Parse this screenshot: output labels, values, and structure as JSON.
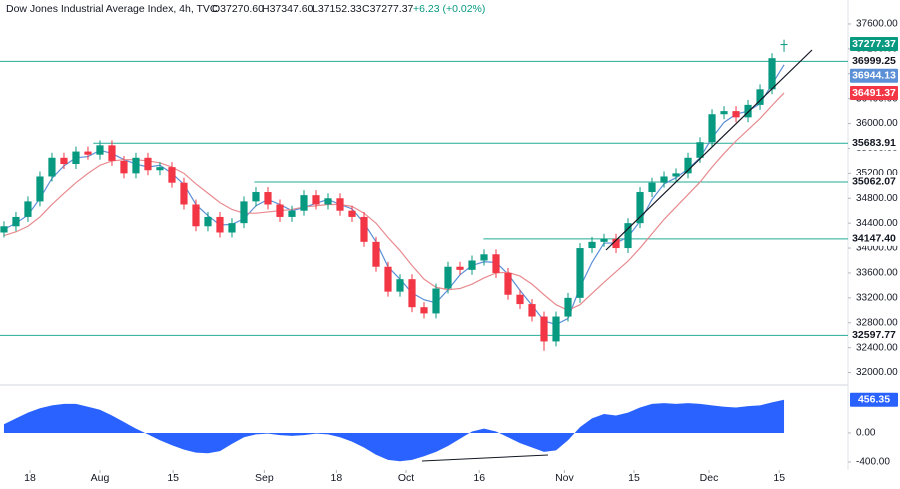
{
  "header": {
    "title": "Dow Jones Industrial Average Index, 4h, TVC",
    "open": "O37270.60",
    "high": "H37347.60",
    "low": "L37152.33",
    "close": "C37277.37",
    "change": "+6.23 (+0.02%)"
  },
  "chart_data": [
    {
      "type": "candlestick",
      "open": [
        34250,
        34350,
        34500,
        34750,
        35150,
        35450,
        35350,
        35550,
        35500,
        35650,
        35400,
        35200,
        35450,
        35250,
        35300,
        35050,
        34700,
        34350,
        34500,
        34250,
        34400,
        34750,
        34900,
        34700,
        34500,
        34600,
        34850,
        34700,
        34800,
        34600,
        34500,
        34100,
        33700,
        33300,
        33500,
        33050,
        32950,
        33350,
        33700,
        33650,
        33800,
        33900,
        33600,
        33250,
        33100,
        32900,
        32500,
        32900,
        33200,
        34000,
        34100,
        34150,
        34000,
        34400,
        34900,
        35050,
        35150,
        35200,
        35450,
        35700,
        36150,
        36200,
        36100,
        36300,
        36550,
        37270.6
      ],
      "high": [
        34430,
        34580,
        34830,
        35230,
        35530,
        35530,
        35630,
        35630,
        35730,
        35730,
        35480,
        35530,
        35530,
        35380,
        35380,
        35130,
        34780,
        34580,
        34580,
        34480,
        34830,
        34980,
        34980,
        34780,
        34680,
        34930,
        34930,
        34880,
        34880,
        34680,
        34580,
        34180,
        33780,
        33580,
        33580,
        33130,
        33430,
        33780,
        33780,
        33880,
        33980,
        33980,
        33680,
        33330,
        33180,
        32980,
        32980,
        33280,
        34080,
        34180,
        34230,
        34230,
        34480,
        34980,
        35130,
        35230,
        35280,
        35530,
        35780,
        36230,
        36280,
        36280,
        36380,
        36630,
        37130,
        37347.6
      ],
      "low": [
        34170,
        34270,
        34420,
        34670,
        35070,
        35270,
        35270,
        35420,
        35420,
        35320,
        35120,
        35120,
        35170,
        35170,
        34970,
        34620,
        34270,
        34270,
        34170,
        34170,
        34320,
        34670,
        34620,
        34420,
        34420,
        34520,
        34620,
        34620,
        34520,
        34420,
        34020,
        33620,
        33220,
        33220,
        32970,
        32870,
        32870,
        33270,
        33570,
        33570,
        33720,
        33520,
        33170,
        33020,
        32820,
        32350,
        32420,
        32820,
        33120,
        33920,
        34020,
        33920,
        33920,
        34320,
        34820,
        34970,
        35070,
        35120,
        35370,
        35620,
        36070,
        36020,
        36020,
        36220,
        36470,
        37152.33
      ],
      "close": [
        34350,
        34500,
        34750,
        35150,
        35450,
        35350,
        35550,
        35500,
        35650,
        35400,
        35200,
        35450,
        35250,
        35300,
        35050,
        34700,
        34350,
        34500,
        34250,
        34400,
        34750,
        34900,
        34700,
        34500,
        34600,
        34850,
        34700,
        34800,
        34600,
        34500,
        34100,
        33700,
        33300,
        33500,
        33050,
        32950,
        33350,
        33700,
        33650,
        33800,
        33900,
        33600,
        33250,
        33100,
        32900,
        32500,
        32900,
        33200,
        34000,
        34100,
        34150,
        34000,
        34400,
        34900,
        35050,
        35150,
        35200,
        35450,
        35700,
        36150,
        36200,
        36100,
        36300,
        36550,
        37050,
        37277.37
      ],
      "up_color": "#089981",
      "down_color": "#f23645",
      "series": [
        {
          "color": "#5b8fd6",
          "values": [
            34300,
            34400,
            34530,
            34800,
            35120,
            35320,
            35450,
            35470,
            35570,
            35520,
            35420,
            35350,
            35300,
            35330,
            35200,
            35020,
            34700,
            34520,
            34370,
            34380,
            34470,
            34680,
            34780,
            34700,
            34600,
            34650,
            34720,
            34780,
            34700,
            34630,
            34400,
            34100,
            33700,
            33500,
            33280,
            33170,
            33120,
            33330,
            33570,
            33720,
            33780,
            33770,
            33580,
            33320,
            33080,
            32830,
            32770,
            32870,
            33370,
            33770,
            34080,
            34080,
            34180,
            34430,
            34780,
            35030,
            35130,
            35270,
            35450,
            35770,
            36020,
            36150,
            36200,
            36320,
            36630,
            36944.13
          ]
        },
        {
          "color": "#e88a8f",
          "values": [
            34200,
            34260,
            34350,
            34500,
            34700,
            34880,
            35050,
            35200,
            35330,
            35400,
            35420,
            35420,
            35400,
            35370,
            35300,
            35200,
            35030,
            34880,
            34730,
            34620,
            34560,
            34560,
            34580,
            34600,
            34620,
            34660,
            34680,
            34700,
            34700,
            34670,
            34560,
            34400,
            34170,
            33960,
            33720,
            33500,
            33370,
            33330,
            33350,
            33420,
            33520,
            33600,
            33610,
            33550,
            33420,
            33250,
            33090,
            33000,
            33090,
            33270,
            33450,
            33620,
            33790,
            34000,
            34230,
            34460,
            34660,
            34860,
            35060,
            35300,
            35520,
            35720,
            35900,
            36080,
            36290,
            36491.37
          ]
        }
      ],
      "levels": [
        {
          "value": 36999.25,
          "label": "36999.25"
        },
        {
          "value": 35683.91,
          "label": "35683.91"
        },
        {
          "value": 35062.07,
          "label": "35062.07"
        },
        {
          "value": 34147.4,
          "label": "34147.40"
        },
        {
          "value": 32597.77,
          "label": "32597.77"
        }
      ],
      "price_labels": [
        {
          "value": 37277.37,
          "label": "37277.37",
          "color": "#089981"
        },
        {
          "value": 36944.13,
          "label": "36944.13",
          "color": "#5b8fd6"
        },
        {
          "value": 36491.37,
          "label": "36491.37",
          "color": "#f23645"
        }
      ],
      "xlim": [
        -0.33,
        70.33
      ],
      "ylim": [
        31800,
        37985
      ],
      "yticks": [
        {
          "value": 32000,
          "label": "32000.00"
        },
        {
          "value": 32400,
          "label": "32400.00"
        },
        {
          "value": 32800,
          "label": "32800.00"
        },
        {
          "value": 33200,
          "label": "33200.00"
        },
        {
          "value": 33600,
          "label": "33600.00"
        },
        {
          "value": 34000,
          "label": "34000.00"
        },
        {
          "value": 34400,
          "label": "34400.00"
        },
        {
          "value": 34800,
          "label": "34800.00"
        },
        {
          "value": 35200,
          "label": "35200.00"
        },
        {
          "value": 35600,
          "label": "35600.00"
        },
        {
          "value": 36000,
          "label": "36000.00"
        },
        {
          "value": 36400,
          "label": "36400.00"
        },
        {
          "value": 36800,
          "label": "36800.00"
        },
        {
          "value": 37200,
          "label": "37200.00"
        },
        {
          "value": 37600,
          "label": "37600.00"
        }
      ],
      "xticks": [
        {
          "value": 2.17,
          "label": "18"
        },
        {
          "value": 8,
          "label": "Aug"
        },
        {
          "value": 14.1,
          "label": "15"
        },
        {
          "value": 21.7,
          "label": "Sep"
        },
        {
          "value": 27.7,
          "label": "18"
        },
        {
          "value": 33.5,
          "label": "Oct"
        },
        {
          "value": 39.6,
          "label": "16"
        },
        {
          "value": 46.7,
          "label": "Nov"
        },
        {
          "value": 52.5,
          "label": "15"
        },
        {
          "value": 58.75,
          "label": "Dec"
        },
        {
          "value": 64.6,
          "label": "15"
        }
      ]
    },
    {
      "type": "area",
      "color": "#2962ff",
      "values": [
        120,
        200,
        280,
        340,
        380,
        400,
        400,
        360,
        320,
        240,
        150,
        60,
        -20,
        -100,
        -170,
        -230,
        -270,
        -280,
        -250,
        -150,
        -60,
        -20,
        -10,
        -30,
        -40,
        -30,
        -10,
        -20,
        -60,
        -120,
        -200,
        -300,
        -370,
        -390,
        -370,
        -320,
        -260,
        -180,
        -80,
        20,
        60,
        20,
        -60,
        -140,
        -200,
        -260,
        -240,
        -100,
        80,
        200,
        260,
        240,
        280,
        350,
        400,
        410,
        400,
        410,
        400,
        380,
        360,
        350,
        370,
        380,
        420,
        456.35
      ],
      "last_label": {
        "value": 456.35,
        "label": "456.35"
      },
      "ylim": [
        -510,
        660
      ],
      "yticks": [
        {
          "value": 0,
          "label": "0.00"
        },
        {
          "value": -400,
          "label": "-400.00"
        }
      ]
    }
  ]
}
